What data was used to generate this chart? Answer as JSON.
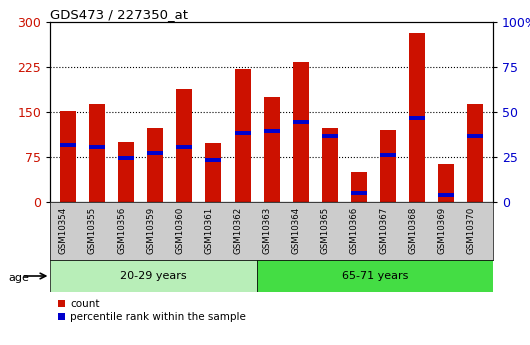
{
  "title": "GDS473 / 227350_at",
  "samples": [
    "GSM10354",
    "GSM10355",
    "GSM10356",
    "GSM10359",
    "GSM10360",
    "GSM10361",
    "GSM10362",
    "GSM10363",
    "GSM10364",
    "GSM10365",
    "GSM10366",
    "GSM10367",
    "GSM10368",
    "GSM10369",
    "GSM10370"
  ],
  "counts": [
    152,
    163,
    100,
    123,
    188,
    98,
    222,
    175,
    233,
    123,
    50,
    120,
    283,
    63,
    163
  ],
  "percentile_left": [
    95,
    92,
    73,
    82,
    92,
    70,
    115,
    118,
    133,
    110,
    15,
    78,
    140,
    12,
    110
  ],
  "group1_count": 7,
  "group2_count": 8,
  "group_labels": [
    "20-29 years",
    "65-71 years"
  ],
  "group1_color": "#B8EEB8",
  "group2_color": "#44DD44",
  "bar_color": "#CC1100",
  "percentile_color": "#0000CC",
  "left_ylim": [
    0,
    300
  ],
  "right_ylim": [
    0,
    100
  ],
  "left_yticks": [
    0,
    75,
    150,
    225,
    300
  ],
  "right_yticks": [
    0,
    25,
    50,
    75,
    100
  ],
  "left_tick_color": "#CC1100",
  "right_tick_color": "#0000CC",
  "plot_bg": "#FFFFFF",
  "tick_bg": "#CCCCCC",
  "legend_count_label": "count",
  "legend_pct_label": "percentile rank within the sample",
  "age_label": "age",
  "bar_width": 0.55
}
